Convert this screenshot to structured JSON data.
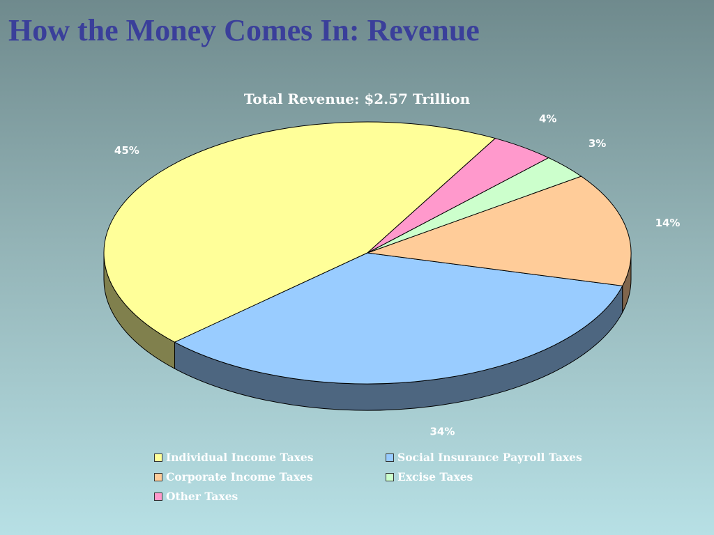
{
  "slide": {
    "title": "How the Money Comes In: Revenue"
  },
  "colors": {
    "individual": "#ffff99",
    "social": "#99ccff",
    "corporate": "#ffcc99",
    "excise": "#ccffcc",
    "other": "#ff99cc"
  },
  "chart_data": {
    "type": "pie",
    "title": "Total Revenue: $2.57 Trillion",
    "style": "3d",
    "legend": "bottom",
    "slices": [
      {
        "name": "Individual Income Taxes",
        "value": 45,
        "label": "45%",
        "color": "#ffff99"
      },
      {
        "name": "Social Insurance Payroll Taxes",
        "value": 34,
        "label": "34%",
        "color": "#99ccff"
      },
      {
        "name": "Corporate Income Taxes",
        "value": 14,
        "label": "14%",
        "color": "#ffcc99"
      },
      {
        "name": "Excise Taxes",
        "value": 3,
        "label": "3%",
        "color": "#ccffcc"
      },
      {
        "name": "Other Taxes",
        "value": 4,
        "label": "4%",
        "color": "#ff99cc"
      }
    ]
  }
}
